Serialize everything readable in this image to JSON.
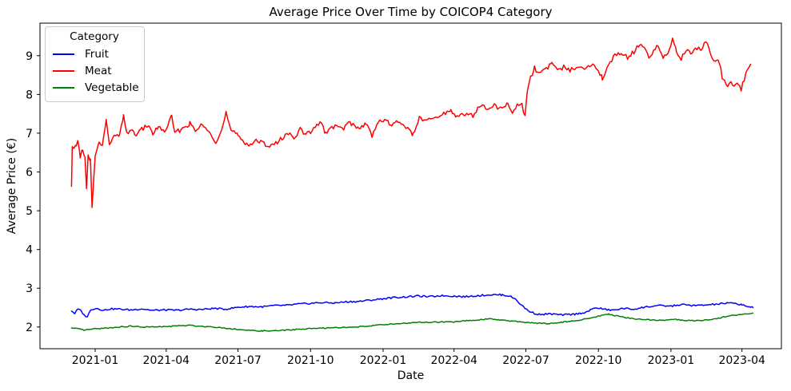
{
  "chart_data": {
    "type": "line",
    "title": "Average Price Over Time by COICOP4 Category",
    "xlabel": "Date",
    "ylabel": "Average Price (€)",
    "grid": false,
    "legend": {
      "title": "Category",
      "position": "upper left"
    },
    "x_axis": {
      "range": [
        "2020-10-23",
        "2023-05-21"
      ],
      "ticks": [
        "2021-01",
        "2021-04",
        "2021-07",
        "2021-10",
        "2022-01",
        "2022-04",
        "2022-07",
        "2022-10",
        "2023-01",
        "2023-04"
      ],
      "tick_dates": [
        "2021-01-01",
        "2021-04-01",
        "2021-07-01",
        "2021-10-01",
        "2022-01-01",
        "2022-04-01",
        "2022-07-01",
        "2022-10-01",
        "2023-01-01",
        "2023-04-01"
      ]
    },
    "y_axis": {
      "range": [
        1.44,
        9.84
      ],
      "ticks": [
        2,
        3,
        4,
        5,
        6,
        7,
        8,
        9
      ]
    },
    "series": [
      {
        "name": "Fruit",
        "color": "#0000ff",
        "noise": 0.022,
        "points": [
          [
            "2020-12-02",
            2.42
          ],
          [
            "2020-12-06",
            2.35
          ],
          [
            "2020-12-10",
            2.46
          ],
          [
            "2020-12-14",
            2.42
          ],
          [
            "2020-12-18",
            2.3
          ],
          [
            "2020-12-22",
            2.27
          ],
          [
            "2020-12-27",
            2.46
          ],
          [
            "2021-01-04",
            2.48
          ],
          [
            "2021-01-12",
            2.43
          ],
          [
            "2021-01-20",
            2.47
          ],
          [
            "2021-02-01",
            2.46
          ],
          [
            "2021-02-15",
            2.44
          ],
          [
            "2021-03-01",
            2.47
          ],
          [
            "2021-03-15",
            2.43
          ],
          [
            "2021-04-01",
            2.44
          ],
          [
            "2021-04-15",
            2.43
          ],
          [
            "2021-05-01",
            2.46
          ],
          [
            "2021-05-15",
            2.45
          ],
          [
            "2021-06-01",
            2.48
          ],
          [
            "2021-06-15",
            2.46
          ],
          [
            "2021-07-01",
            2.51
          ],
          [
            "2021-07-15",
            2.53
          ],
          [
            "2021-08-01",
            2.52
          ],
          [
            "2021-08-15",
            2.55
          ],
          [
            "2021-09-01",
            2.56
          ],
          [
            "2021-09-15",
            2.59
          ],
          [
            "2021-10-01",
            2.61
          ],
          [
            "2021-10-15",
            2.63
          ],
          [
            "2021-11-01",
            2.62
          ],
          [
            "2021-11-15",
            2.65
          ],
          [
            "2021-12-01",
            2.66
          ],
          [
            "2021-12-15",
            2.69
          ],
          [
            "2022-01-01",
            2.73
          ],
          [
            "2022-01-15",
            2.76
          ],
          [
            "2022-02-01",
            2.78
          ],
          [
            "2022-02-15",
            2.8
          ],
          [
            "2022-03-01",
            2.78
          ],
          [
            "2022-03-15",
            2.81
          ],
          [
            "2022-04-01",
            2.8
          ],
          [
            "2022-04-15",
            2.78
          ],
          [
            "2022-05-01",
            2.81
          ],
          [
            "2022-05-15",
            2.83
          ],
          [
            "2022-06-01",
            2.83
          ],
          [
            "2022-06-10",
            2.8
          ],
          [
            "2022-06-18",
            2.72
          ],
          [
            "2022-06-26",
            2.55
          ],
          [
            "2022-07-04",
            2.42
          ],
          [
            "2022-07-12",
            2.35
          ],
          [
            "2022-07-20",
            2.32
          ],
          [
            "2022-08-01",
            2.34
          ],
          [
            "2022-08-15",
            2.31
          ],
          [
            "2022-09-01",
            2.33
          ],
          [
            "2022-09-15",
            2.38
          ],
          [
            "2022-09-28",
            2.5
          ],
          [
            "2022-10-08",
            2.46
          ],
          [
            "2022-10-18",
            2.43
          ],
          [
            "2022-11-01",
            2.48
          ],
          [
            "2022-11-15",
            2.46
          ],
          [
            "2022-12-01",
            2.52
          ],
          [
            "2022-12-15",
            2.55
          ],
          [
            "2023-01-01",
            2.54
          ],
          [
            "2023-01-15",
            2.58
          ],
          [
            "2023-02-01",
            2.55
          ],
          [
            "2023-02-15",
            2.57
          ],
          [
            "2023-03-01",
            2.59
          ],
          [
            "2023-03-15",
            2.62
          ],
          [
            "2023-04-01",
            2.58
          ],
          [
            "2023-04-10",
            2.52
          ],
          [
            "2023-04-15",
            2.5
          ]
        ]
      },
      {
        "name": "Meat",
        "color": "#ff0000",
        "noise": 0.06,
        "points": [
          [
            "2020-12-02",
            5.6
          ],
          [
            "2020-12-03",
            6.62
          ],
          [
            "2020-12-05",
            6.55
          ],
          [
            "2020-12-08",
            6.7
          ],
          [
            "2020-12-10",
            6.84
          ],
          [
            "2020-12-13",
            6.37
          ],
          [
            "2020-12-16",
            6.62
          ],
          [
            "2020-12-19",
            6.35
          ],
          [
            "2020-12-21",
            5.55
          ],
          [
            "2020-12-23",
            6.4
          ],
          [
            "2020-12-26",
            6.3
          ],
          [
            "2020-12-28",
            5.05
          ],
          [
            "2021-01-01",
            6.45
          ],
          [
            "2021-01-06",
            6.75
          ],
          [
            "2021-01-10",
            6.7
          ],
          [
            "2021-01-15",
            7.3
          ],
          [
            "2021-01-19",
            6.75
          ],
          [
            "2021-01-25",
            6.9
          ],
          [
            "2021-02-01",
            6.95
          ],
          [
            "2021-02-06",
            7.42
          ],
          [
            "2021-02-10",
            7.0
          ],
          [
            "2021-02-15",
            7.1
          ],
          [
            "2021-02-20",
            6.95
          ],
          [
            "2021-03-01",
            7.1
          ],
          [
            "2021-03-08",
            7.2
          ],
          [
            "2021-03-15",
            7.0
          ],
          [
            "2021-03-22",
            7.15
          ],
          [
            "2021-04-01",
            7.05
          ],
          [
            "2021-04-08",
            7.45
          ],
          [
            "2021-04-12",
            7.0
          ],
          [
            "2021-04-20",
            7.1
          ],
          [
            "2021-05-01",
            7.25
          ],
          [
            "2021-05-08",
            7.05
          ],
          [
            "2021-05-15",
            7.2
          ],
          [
            "2021-05-25",
            7.1
          ],
          [
            "2021-06-03",
            6.78
          ],
          [
            "2021-06-10",
            7.05
          ],
          [
            "2021-06-16",
            7.52
          ],
          [
            "2021-06-22",
            7.05
          ],
          [
            "2021-07-01",
            6.95
          ],
          [
            "2021-07-08",
            6.8
          ],
          [
            "2021-07-15",
            6.68
          ],
          [
            "2021-07-22",
            6.8
          ],
          [
            "2021-08-01",
            6.75
          ],
          [
            "2021-08-10",
            6.68
          ],
          [
            "2021-08-20",
            6.75
          ],
          [
            "2021-09-01",
            7.0
          ],
          [
            "2021-09-10",
            6.9
          ],
          [
            "2021-09-18",
            7.1
          ],
          [
            "2021-09-25",
            6.95
          ],
          [
            "2021-10-05",
            7.1
          ],
          [
            "2021-10-13",
            7.32
          ],
          [
            "2021-10-20",
            7.0
          ],
          [
            "2021-11-01",
            7.2
          ],
          [
            "2021-11-10",
            7.1
          ],
          [
            "2021-11-20",
            7.28
          ],
          [
            "2021-12-01",
            7.12
          ],
          [
            "2021-12-10",
            7.25
          ],
          [
            "2021-12-18",
            6.95
          ],
          [
            "2021-12-24",
            7.25
          ],
          [
            "2022-01-03",
            7.35
          ],
          [
            "2022-01-12",
            7.2
          ],
          [
            "2022-01-20",
            7.3
          ],
          [
            "2022-02-01",
            7.15
          ],
          [
            "2022-02-08",
            6.95
          ],
          [
            "2022-02-16",
            7.4
          ],
          [
            "2022-02-24",
            7.3
          ],
          [
            "2022-03-05",
            7.38
          ],
          [
            "2022-03-15",
            7.45
          ],
          [
            "2022-03-28",
            7.6
          ],
          [
            "2022-04-05",
            7.42
          ],
          [
            "2022-04-15",
            7.5
          ],
          [
            "2022-04-25",
            7.45
          ],
          [
            "2022-05-05",
            7.75
          ],
          [
            "2022-05-12",
            7.6
          ],
          [
            "2022-05-20",
            7.72
          ],
          [
            "2022-06-01",
            7.62
          ],
          [
            "2022-06-08",
            7.78
          ],
          [
            "2022-06-14",
            7.52
          ],
          [
            "2022-06-20",
            7.72
          ],
          [
            "2022-06-26",
            7.75
          ],
          [
            "2022-06-30",
            7.42
          ],
          [
            "2022-07-03",
            8.15
          ],
          [
            "2022-07-07",
            8.42
          ],
          [
            "2022-07-12",
            8.72
          ],
          [
            "2022-07-16",
            8.55
          ],
          [
            "2022-07-25",
            8.62
          ],
          [
            "2022-08-03",
            8.82
          ],
          [
            "2022-08-10",
            8.6
          ],
          [
            "2022-08-18",
            8.7
          ],
          [
            "2022-08-26",
            8.62
          ],
          [
            "2022-09-05",
            8.75
          ],
          [
            "2022-09-14",
            8.68
          ],
          [
            "2022-09-22",
            8.78
          ],
          [
            "2022-10-01",
            8.65
          ],
          [
            "2022-10-06",
            8.4
          ],
          [
            "2022-10-14",
            8.8
          ],
          [
            "2022-10-22",
            9.0
          ],
          [
            "2022-10-30",
            9.1
          ],
          [
            "2022-11-07",
            8.95
          ],
          [
            "2022-11-15",
            9.1
          ],
          [
            "2022-11-22",
            9.28
          ],
          [
            "2022-11-28",
            9.22
          ],
          [
            "2022-12-04",
            8.9
          ],
          [
            "2022-12-10",
            9.15
          ],
          [
            "2022-12-16",
            9.25
          ],
          [
            "2022-12-22",
            8.95
          ],
          [
            "2022-12-28",
            9.1
          ],
          [
            "2023-01-03",
            9.42
          ],
          [
            "2023-01-08",
            9.1
          ],
          [
            "2023-01-14",
            8.92
          ],
          [
            "2023-01-20",
            9.15
          ],
          [
            "2023-01-26",
            9.05
          ],
          [
            "2023-02-01",
            9.2
          ],
          [
            "2023-02-08",
            9.18
          ],
          [
            "2023-02-14",
            9.35
          ],
          [
            "2023-02-18",
            9.2
          ],
          [
            "2023-02-24",
            8.9
          ],
          [
            "2023-03-03",
            8.85
          ],
          [
            "2023-03-08",
            8.35
          ],
          [
            "2023-03-14",
            8.25
          ],
          [
            "2023-03-18",
            8.35
          ],
          [
            "2023-03-22",
            8.18
          ],
          [
            "2023-03-27",
            8.3
          ],
          [
            "2023-03-31",
            8.15
          ],
          [
            "2023-04-04",
            8.4
          ],
          [
            "2023-04-08",
            8.68
          ],
          [
            "2023-04-12",
            8.78
          ]
        ]
      },
      {
        "name": "Vegetable",
        "color": "#008000",
        "noise": 0.013,
        "points": [
          [
            "2020-12-02",
            1.97
          ],
          [
            "2020-12-10",
            1.95
          ],
          [
            "2020-12-18",
            1.92
          ],
          [
            "2020-12-26",
            1.94
          ],
          [
            "2021-01-05",
            1.96
          ],
          [
            "2021-01-15",
            1.97
          ],
          [
            "2021-02-01",
            2.0
          ],
          [
            "2021-02-15",
            2.02
          ],
          [
            "2021-03-01",
            2.0
          ],
          [
            "2021-03-15",
            2.0
          ],
          [
            "2021-04-01",
            2.01
          ],
          [
            "2021-04-15",
            2.03
          ],
          [
            "2021-05-01",
            2.04
          ],
          [
            "2021-05-15",
            2.02
          ],
          [
            "2021-06-01",
            2.0
          ],
          [
            "2021-06-15",
            1.97
          ],
          [
            "2021-07-01",
            1.94
          ],
          [
            "2021-07-15",
            1.91
          ],
          [
            "2021-08-01",
            1.9
          ],
          [
            "2021-08-15",
            1.9
          ],
          [
            "2021-09-01",
            1.92
          ],
          [
            "2021-09-15",
            1.94
          ],
          [
            "2021-10-01",
            1.96
          ],
          [
            "2021-10-15",
            1.97
          ],
          [
            "2021-11-01",
            1.98
          ],
          [
            "2021-11-15",
            1.99
          ],
          [
            "2021-12-01",
            2.01
          ],
          [
            "2021-12-15",
            2.03
          ],
          [
            "2022-01-01",
            2.06
          ],
          [
            "2022-01-15",
            2.08
          ],
          [
            "2022-02-01",
            2.1
          ],
          [
            "2022-02-15",
            2.12
          ],
          [
            "2022-03-01",
            2.12
          ],
          [
            "2022-03-15",
            2.13
          ],
          [
            "2022-04-01",
            2.13
          ],
          [
            "2022-04-15",
            2.16
          ],
          [
            "2022-05-01",
            2.18
          ],
          [
            "2022-05-15",
            2.21
          ],
          [
            "2022-06-01",
            2.18
          ],
          [
            "2022-06-15",
            2.15
          ],
          [
            "2022-07-01",
            2.12
          ],
          [
            "2022-07-15",
            2.1
          ],
          [
            "2022-08-01",
            2.09
          ],
          [
            "2022-08-18",
            2.13
          ],
          [
            "2022-09-01",
            2.16
          ],
          [
            "2022-09-15",
            2.21
          ],
          [
            "2022-10-01",
            2.28
          ],
          [
            "2022-10-14",
            2.33
          ],
          [
            "2022-10-26",
            2.28
          ],
          [
            "2022-11-08",
            2.23
          ],
          [
            "2022-11-20",
            2.2
          ],
          [
            "2022-12-05",
            2.19
          ],
          [
            "2022-12-20",
            2.17
          ],
          [
            "2023-01-05",
            2.2
          ],
          [
            "2023-01-20",
            2.17
          ],
          [
            "2023-02-05",
            2.16
          ],
          [
            "2023-02-20",
            2.19
          ],
          [
            "2023-03-05",
            2.24
          ],
          [
            "2023-03-20",
            2.3
          ],
          [
            "2023-04-05",
            2.33
          ],
          [
            "2023-04-15",
            2.36
          ]
        ]
      }
    ]
  }
}
